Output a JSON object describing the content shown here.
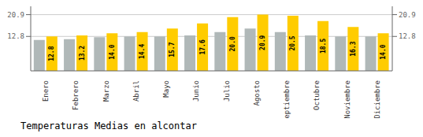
{
  "chart_data": {
    "type": "bar",
    "title": "Temperaturas Medias en alcontar",
    "categories": [
      "Enero",
      "Febrero",
      "Marzo",
      "Abril",
      "Mayo",
      "Junio",
      "Julio",
      "Agosto",
      "Septiembre",
      "Octubre",
      "Noviembre",
      "Diciembre"
    ],
    "series": [
      {
        "color": "#B0B8B8",
        "values": [
          11.5,
          11.8,
          12.5,
          12.8,
          12.8,
          13.2,
          14.4,
          15.7,
          14.4,
          13.2,
          12.8,
          12.8
        ]
      },
      {
        "color": "#FFCC00",
        "values": [
          12.8,
          13.2,
          14.0,
          14.4,
          15.7,
          17.6,
          20.0,
          20.9,
          20.5,
          18.5,
          16.3,
          14.0
        ],
        "data_labels": true,
        "value_labels": [
          "12.8",
          "13.2",
          "14.0",
          "14.4",
          "15.7",
          "17.6",
          "20.0",
          "20.9",
          "20.5",
          "18.5",
          "16.3",
          "14.0"
        ]
      }
    ],
    "ylim": [
      0,
      24.0
    ],
    "yticks": [
      12.8,
      20.9
    ],
    "y2lim": [
      0,
      24.0
    ],
    "y2ticks": [
      12.8,
      20.9
    ],
    "grid": true
  }
}
